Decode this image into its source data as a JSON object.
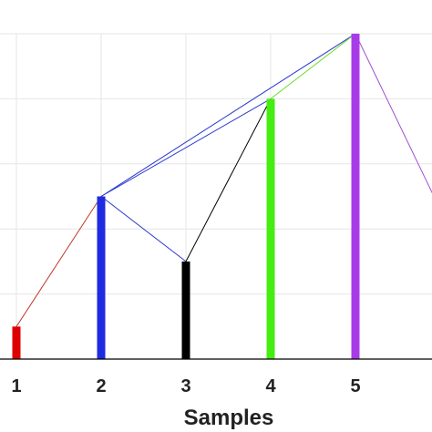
{
  "chart_data": {
    "type": "bar",
    "title": "",
    "xlabel": "Samples",
    "ylabel": "",
    "categories": [
      "1",
      "2",
      "3",
      "4",
      "5"
    ],
    "values": [
      0.5,
      2.5,
      1.5,
      4.0,
      5.0
    ],
    "bar_colors": [
      "#dd0000",
      "#1f2be0",
      "#000000",
      "#44ee11",
      "#a83be8"
    ],
    "ylim": [
      0,
      5
    ],
    "grid": true,
    "links": [
      {
        "from": "1",
        "to": "2",
        "color": "#c0392b"
      },
      {
        "from": "2",
        "to": "3",
        "color": "#2b3ad0"
      },
      {
        "from": "2",
        "to": "4",
        "color": "#2b3ad0"
      },
      {
        "from": "2",
        "to": "5",
        "color": "#2b3ad0"
      },
      {
        "from": "3",
        "to": "4",
        "color": "#000000"
      },
      {
        "from": "4",
        "to": "5",
        "color": "#66dd22"
      },
      {
        "from": "5",
        "to": "6",
        "to_value": 2.3,
        "color": "#a050d0"
      }
    ]
  }
}
